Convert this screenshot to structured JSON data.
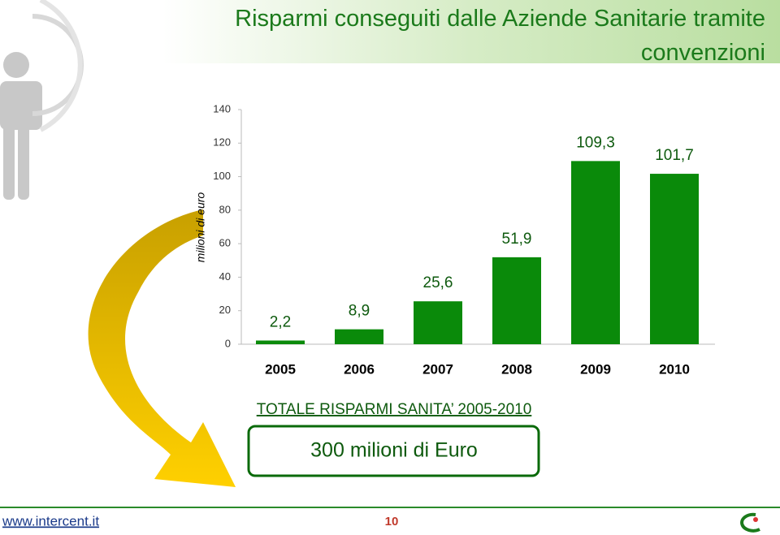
{
  "chart_data": {
    "type": "bar",
    "title": "Risparmi conseguiti dalle Aziende Sanitarie tramite convenzioni",
    "y_label": "milioni di euro",
    "categories": [
      "2005",
      "2006",
      "2007",
      "2008",
      "2009",
      "2010"
    ],
    "values": [
      2.2,
      8.9,
      25.6,
      51.9,
      109.3,
      101.7
    ],
    "value_labels": [
      "2,2",
      "8,9",
      "25,6",
      "51,9",
      "109,3",
      "101,7"
    ],
    "color": "#0a8a0a",
    "ylim": [
      0,
      140
    ],
    "yticks": [
      0,
      20,
      40,
      60,
      80,
      100,
      120,
      140
    ],
    "grid": false
  },
  "summary": {
    "heading": "TOTALE RISPARMI SANITA’ 2005-2010",
    "total": "300 milioni di Euro"
  },
  "footer": {
    "website": "www.intercent.it",
    "page": "10"
  }
}
